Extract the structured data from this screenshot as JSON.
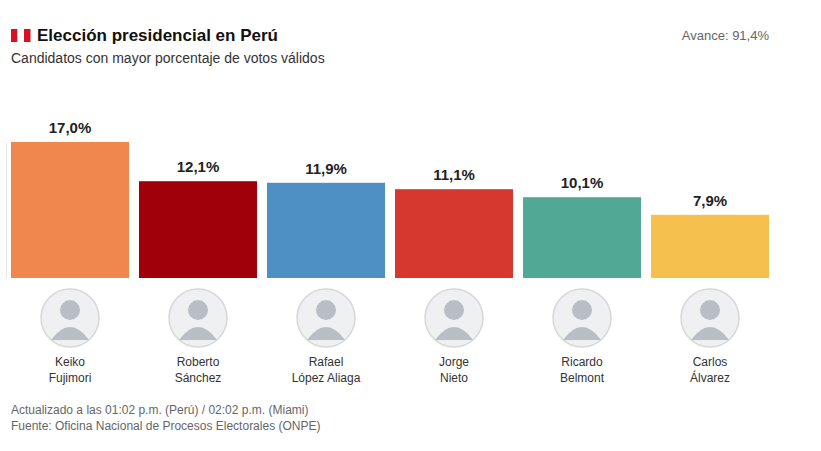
{
  "chart_data": {
    "type": "bar",
    "title": "Elección presidencial en Perú",
    "subtitle": "Candidatos con mayor porcentaje de votos válidos",
    "annotations": [
      "Avance: 91,4%",
      "Actualizado a las 01:02 p.m. (Perú) / 02:02 p.m. (Miami)",
      "Fuente: Oficina Nacional de Procesos Electorales (ONPE)"
    ],
    "categories": [
      "Keiko Fujimori",
      "Roberto Sánchez",
      "Rafael López Aliaga",
      "Jorge Nieto",
      "Ricardo Belmont",
      "Carlos Álvarez"
    ],
    "values": [
      17.0,
      12.1,
      11.9,
      11.1,
      10.1,
      7.9
    ],
    "value_labels": [
      "17,0%",
      "12,1%",
      "11,9%",
      "11,1%",
      "10,1%",
      "7,9%"
    ],
    "colors": [
      "#f0874e",
      "#a0000a",
      "#4e90c4",
      "#d6382f",
      "#50a895",
      "#f5c04e"
    ],
    "ylim": [
      0,
      17
    ],
    "data_labels": true,
    "tick_labels": false
  }
}
